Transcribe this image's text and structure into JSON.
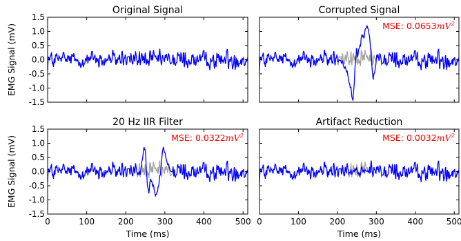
{
  "figure": {
    "ylabel": "EMG Signal (mV)",
    "xlabel": "Time (ms)",
    "colors": {
      "signal": "#0000ff",
      "reference": "#a0a0a0",
      "mse": "#ff0000",
      "axes": "#000000"
    }
  },
  "chart_data": [
    {
      "type": "line",
      "title": "Original Signal",
      "xlim": [
        0,
        512
      ],
      "ylim": [
        -1.5,
        1.5
      ],
      "xticks": [
        "0",
        "100",
        "200",
        "300",
        "400",
        "500"
      ],
      "yticks": [
        "1.5",
        "1.0",
        "0.5",
        "0.0",
        "-0.5",
        "-1.0",
        "-1.5"
      ],
      "show_xticklabels": false,
      "show_yticklabels": true,
      "ylabel": "EMG Signal (mV)",
      "xlabel": "",
      "mse": "",
      "artifact": {
        "x": [],
        "y": []
      },
      "reference_segment": {
        "start": 0,
        "end": 0
      }
    },
    {
      "type": "line",
      "title": "Corrupted Signal",
      "xlim": [
        0,
        512
      ],
      "ylim": [
        -1.5,
        1.5
      ],
      "xticks": [
        "0",
        "100",
        "200",
        "300",
        "400",
        "500"
      ],
      "yticks": [
        "1.5",
        "1.0",
        "0.5",
        "0.0",
        "-0.5",
        "-1.0",
        "-1.5"
      ],
      "show_xticklabels": false,
      "show_yticklabels": false,
      "ylabel": "",
      "xlabel": "",
      "mse": "MSE: 0.0653mV²",
      "mse_prefix": "MSE: 0.0653",
      "mse_unit": "mV",
      "mse_exp": "2",
      "artifact": {
        "x": [
          200,
          212,
          222,
          230,
          236,
          240,
          243,
          246,
          249,
          252,
          256,
          260,
          264,
          268,
          272,
          276,
          280,
          284,
          288,
          292,
          296,
          300
        ],
        "y": [
          0,
          -0.1,
          -0.35,
          -0.75,
          -1.15,
          -1.5,
          -0.9,
          -0.1,
          0.35,
          0.15,
          0.45,
          0.6,
          0.85,
          0.75,
          1.0,
          1.15,
          1.05,
          0.6,
          -0.2,
          -0.65,
          -0.45,
          0
        ]
      },
      "reference_segment": {
        "start": 200,
        "end": 300
      }
    },
    {
      "type": "line",
      "title": "20 Hz IIR Filter",
      "xlim": [
        0,
        512
      ],
      "ylim": [
        -1.5,
        1.5
      ],
      "xticks": [
        "0",
        "100",
        "200",
        "300",
        "400",
        "500"
      ],
      "yticks": [
        "1.5",
        "1.0",
        "0.5",
        "0.0",
        "-0.5",
        "-1.0",
        "-1.5"
      ],
      "show_xticklabels": true,
      "show_yticklabels": true,
      "ylabel": "EMG Signal (mV)",
      "xlabel": "Time (ms)",
      "mse": "MSE: 0.0322mV²",
      "mse_prefix": "MSE: 0.0322",
      "mse_unit": "mV",
      "mse_exp": "2",
      "artifact": {
        "x": [
          228,
          236,
          242,
          247,
          251,
          255,
          259,
          264,
          270,
          276,
          282,
          288,
          292,
          296,
          300,
          304,
          312,
          320
        ],
        "y": [
          0,
          -0.1,
          0.35,
          0.9,
          0.55,
          -0.45,
          -0.7,
          -0.3,
          -0.55,
          -0.9,
          -0.65,
          -0.2,
          0.5,
          0.85,
          0.65,
          0.35,
          0.1,
          0
        ]
      },
      "reference_segment": {
        "start": 228,
        "end": 320
      }
    },
    {
      "type": "line",
      "title": "Artifact Reduction",
      "xlim": [
        0,
        512
      ],
      "ylim": [
        -1.5,
        1.5
      ],
      "xticks": [
        "0",
        "100",
        "200",
        "300",
        "400",
        "500"
      ],
      "yticks": [
        "1.5",
        "1.0",
        "0.5",
        "0.0",
        "-0.5",
        "-1.0",
        "-1.5"
      ],
      "show_xticklabels": true,
      "show_yticklabels": false,
      "ylabel": "",
      "xlabel": "Time (ms)",
      "mse": "MSE: 0.0032mV²",
      "mse_prefix": "MSE: 0.0032",
      "mse_unit": "mV",
      "mse_exp": "2",
      "artifact": {
        "x": [
          230,
          240,
          248,
          256,
          262,
          270,
          280
        ],
        "y": [
          0,
          -0.05,
          0.1,
          -0.1,
          0.05,
          -0.05,
          0
        ]
      },
      "reference_segment": {
        "start": 225,
        "end": 285
      }
    }
  ]
}
